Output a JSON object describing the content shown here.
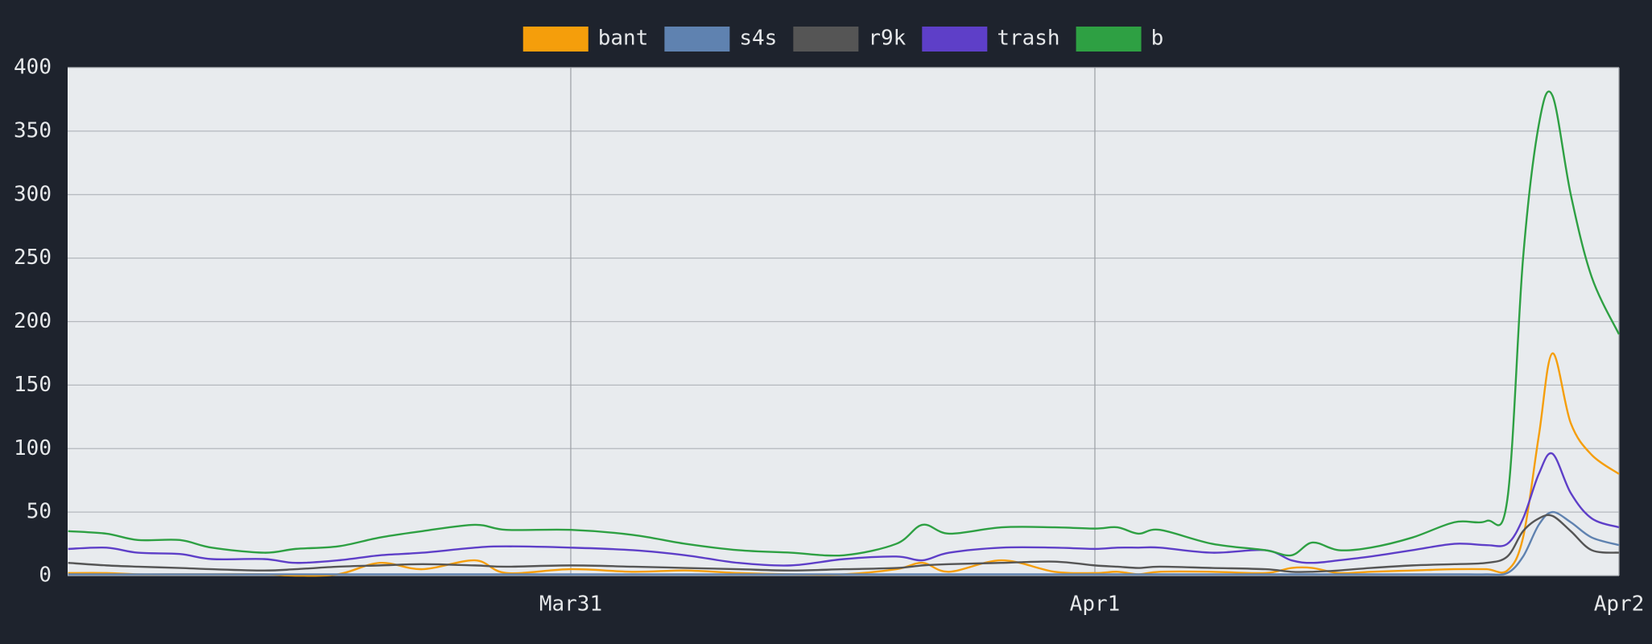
{
  "chart_data": {
    "type": "line",
    "x": [
      0.041,
      0.114,
      0.174,
      0.254,
      0.315,
      0.415,
      0.475,
      0.556,
      0.636,
      0.717,
      0.817,
      0.877,
      1.0,
      1.119,
      1.219,
      1.32,
      1.42,
      1.521,
      1.621,
      1.671,
      1.722,
      1.822,
      1.923,
      2.0,
      2.043,
      2.083,
      2.124,
      2.224,
      2.325,
      2.375,
      2.415,
      2.465,
      2.526,
      2.606,
      2.686,
      2.747,
      2.787,
      2.817,
      2.847,
      2.873,
      2.908,
      2.948,
      3.0
    ],
    "series": [
      {
        "name": "bant",
        "color": "#f59e0b",
        "values": [
          2,
          2,
          1,
          1,
          1,
          1,
          0,
          1,
          10,
          5,
          12,
          2,
          5,
          3,
          4,
          2,
          1,
          1,
          5,
          10,
          3,
          12,
          3,
          2,
          3,
          1,
          3,
          3,
          2,
          6,
          6,
          2,
          3,
          4,
          5,
          5,
          4,
          30,
          110,
          175,
          120,
          95,
          80
        ]
      },
      {
        "name": "s4s",
        "color": "#5f82b0",
        "values": [
          1,
          1,
          1,
          1,
          1,
          1,
          1,
          1,
          1,
          1,
          1,
          1,
          1,
          1,
          1,
          1,
          1,
          1,
          1,
          1,
          1,
          1,
          1,
          1,
          1,
          1,
          1,
          1,
          1,
          1,
          1,
          1,
          1,
          1,
          1,
          1,
          2,
          15,
          40,
          50,
          42,
          30,
          24
        ]
      },
      {
        "name": "r9k",
        "color": "#555555",
        "values": [
          10,
          8,
          7,
          6,
          5,
          4,
          5,
          7,
          8,
          9,
          8,
          7,
          8,
          7,
          6,
          5,
          4,
          5,
          6,
          8,
          9,
          10,
          11,
          8,
          7,
          6,
          7,
          6,
          5,
          3,
          3,
          4,
          6,
          8,
          9,
          10,
          15,
          35,
          45,
          47,
          35,
          20,
          18
        ]
      },
      {
        "name": "trash",
        "color": "#5e3fc8",
        "values": [
          21,
          22,
          18,
          17,
          13,
          13,
          10,
          12,
          16,
          18,
          22,
          23,
          22,
          20,
          16,
          10,
          8,
          13,
          15,
          12,
          18,
          22,
          22,
          21,
          22,
          22,
          22,
          18,
          20,
          12,
          10,
          12,
          15,
          20,
          25,
          24,
          25,
          45,
          80,
          96,
          65,
          45,
          38
        ]
      },
      {
        "name": "b",
        "color": "#2ea043",
        "values": [
          35,
          33,
          28,
          28,
          22,
          18,
          21,
          23,
          30,
          35,
          40,
          36,
          36,
          32,
          25,
          20,
          18,
          16,
          25,
          40,
          33,
          38,
          38,
          37,
          38,
          33,
          36,
          25,
          20,
          16,
          26,
          20,
          22,
          30,
          42,
          43,
          60,
          250,
          355,
          378,
          300,
          235,
          190
        ]
      }
    ],
    "xlim": [
      0.04,
      3
    ],
    "xticks": [
      {
        "value": 1,
        "label": "Mar31"
      },
      {
        "value": 2,
        "label": "Apr1"
      },
      {
        "value": 3,
        "label": "Apr2"
      }
    ],
    "ylim": [
      0,
      400
    ],
    "yticks": [
      0,
      50,
      100,
      150,
      200,
      250,
      300,
      350,
      400
    ],
    "grid": true,
    "legend": "top"
  }
}
